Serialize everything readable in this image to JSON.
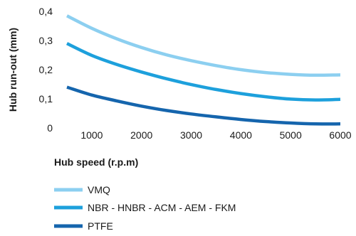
{
  "chart_data": {
    "type": "line",
    "title": "",
    "xlabel": "Hub speed  (r.p.m)",
    "ylabel": "Hub run-out  (mm)",
    "xlim": [
      500,
      6000
    ],
    "ylim": [
      0,
      0.4
    ],
    "xticks": [
      1000,
      2000,
      3000,
      4000,
      5000,
      6000
    ],
    "xtick_labels": [
      "1000",
      "2000",
      "3000",
      "4000",
      "5000",
      "6000"
    ],
    "yticks": [
      0,
      0.1,
      0.2,
      0.3,
      0.4
    ],
    "ytick_labels": [
      "0",
      "0,1",
      "0,2",
      "0,3",
      "0,4"
    ],
    "grid": false,
    "legend_position": "bottom-left",
    "series": [
      {
        "name": "VMQ",
        "color": "#8ccff0",
        "x": [
          500,
          1000,
          1500,
          2000,
          2500,
          3000,
          3500,
          4000,
          4500,
          5000,
          5500,
          6000
        ],
        "y": [
          0.385,
          0.342,
          0.306,
          0.276,
          0.251,
          0.231,
          0.214,
          0.2,
          0.19,
          0.184,
          0.181,
          0.182
        ]
      },
      {
        "name": "NBR - HNBR - ACM - AEM - FKM",
        "color": "#1da0dc",
        "x": [
          500,
          1000,
          1500,
          2000,
          2500,
          3000,
          3500,
          4000,
          4500,
          5000,
          5500,
          6000
        ],
        "y": [
          0.29,
          0.249,
          0.218,
          0.192,
          0.169,
          0.149,
          0.132,
          0.118,
          0.107,
          0.099,
          0.096,
          0.098
        ]
      },
      {
        "name": "PTFE",
        "color": "#1565ad",
        "x": [
          500,
          1000,
          1500,
          2000,
          2500,
          3000,
          3500,
          4000,
          4500,
          5000,
          5500,
          6000
        ],
        "y": [
          0.14,
          0.113,
          0.093,
          0.075,
          0.06,
          0.048,
          0.038,
          0.029,
          0.022,
          0.017,
          0.014,
          0.014
        ]
      }
    ]
  }
}
